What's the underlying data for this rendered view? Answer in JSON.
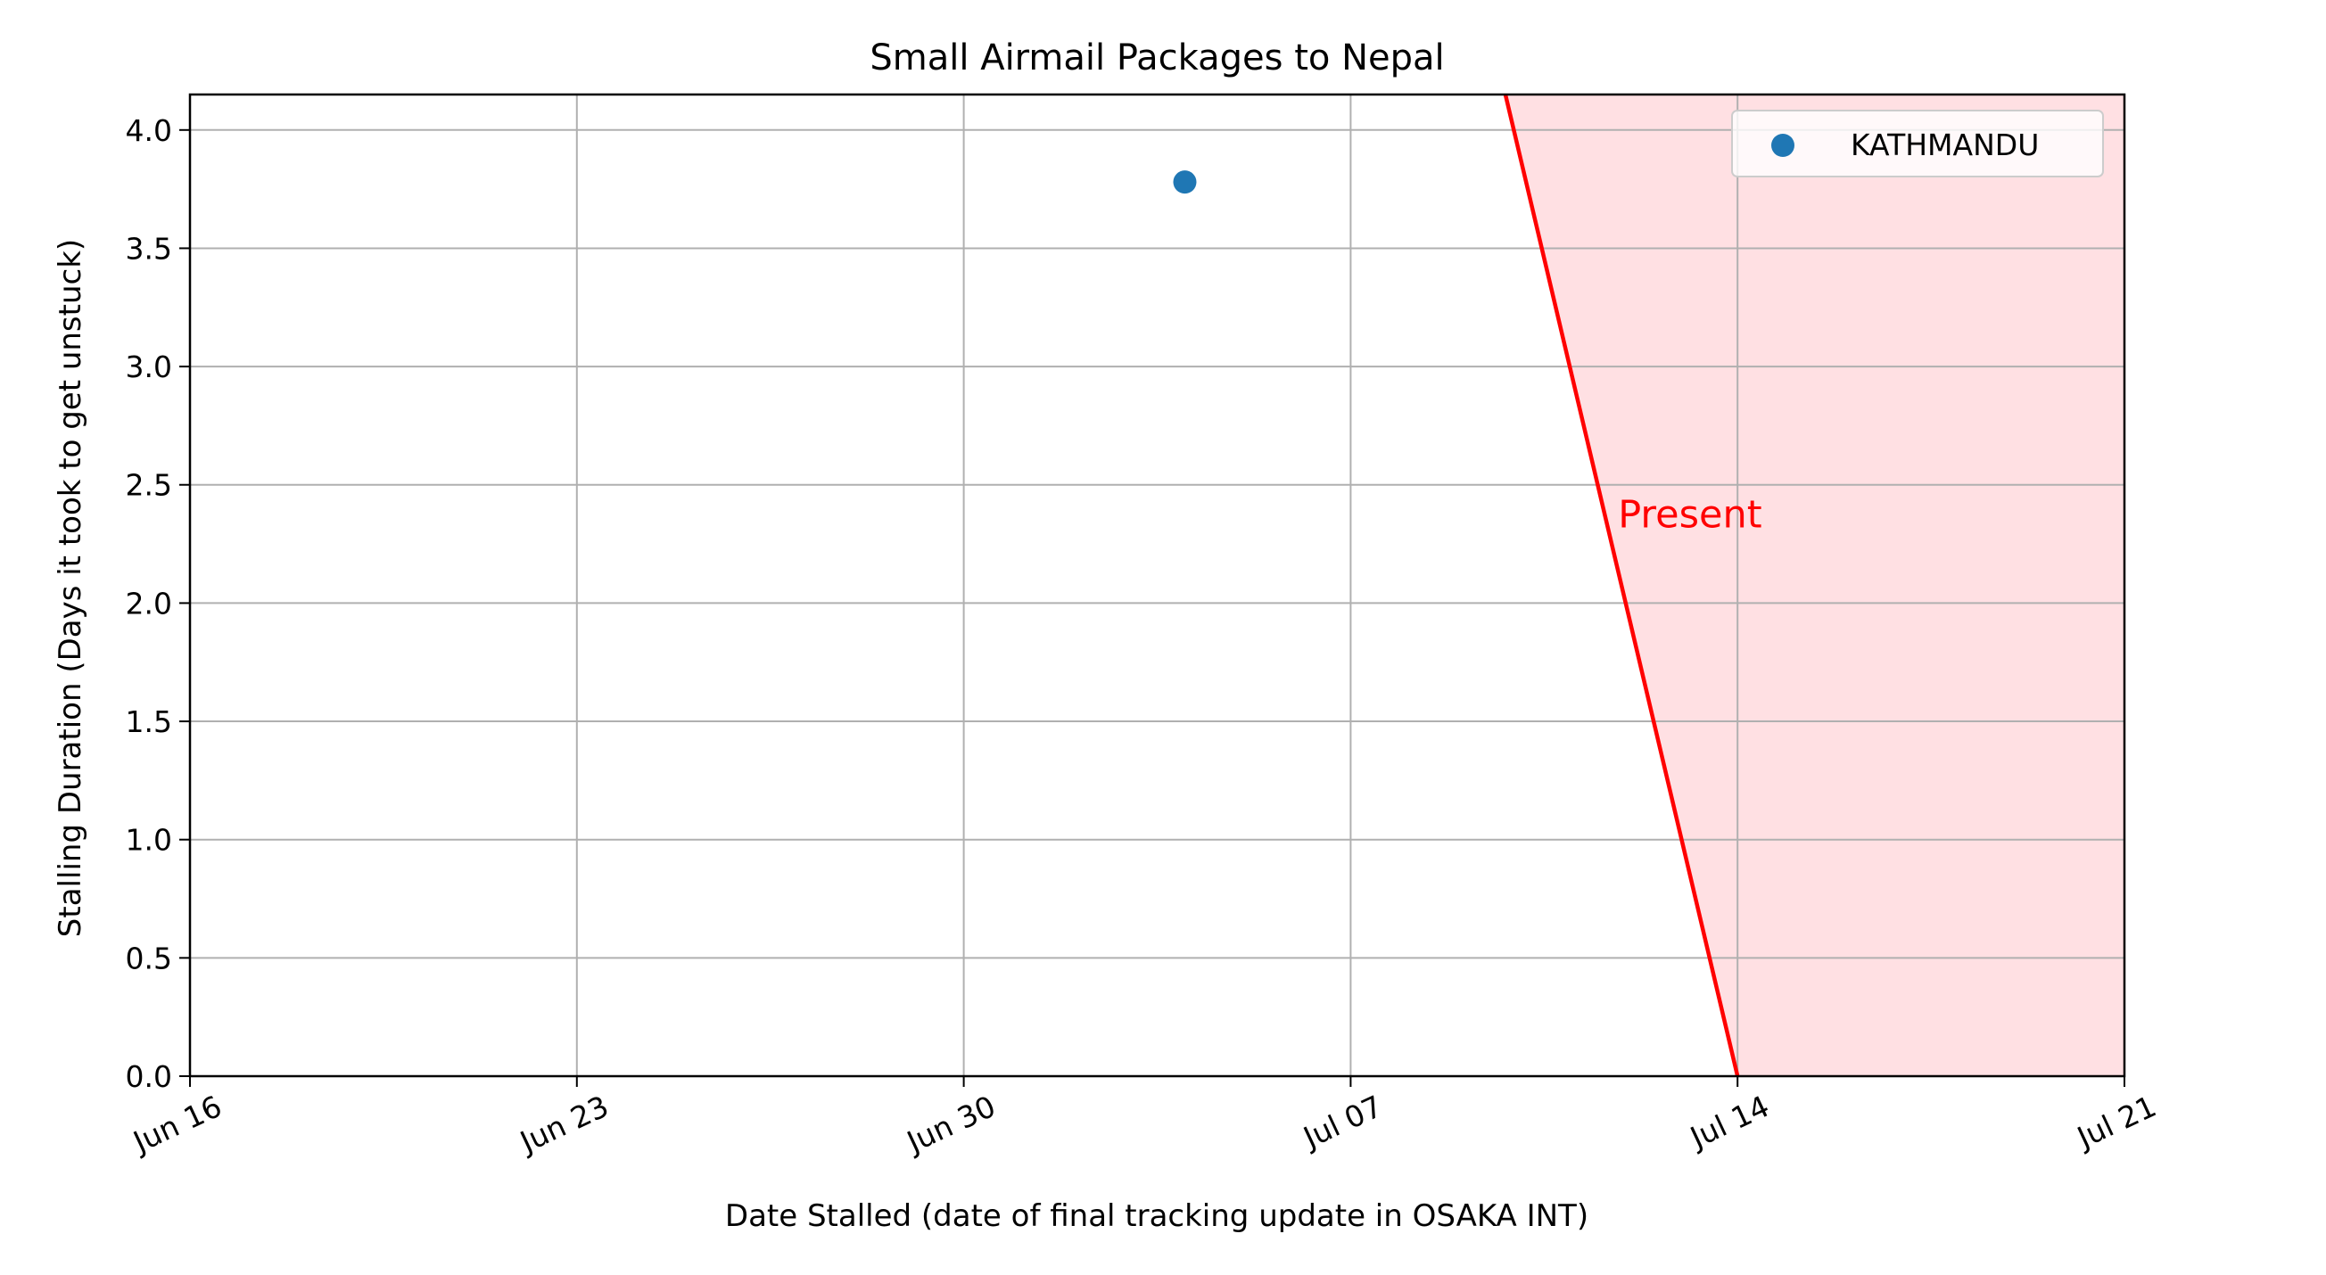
{
  "chart_data": {
    "type": "scatter",
    "title": "Small Airmail Packages to Nepal",
    "xlabel": "Date Stalled (date of final tracking update in OSAKA INT)",
    "ylabel": "Stalling Duration (Days it took to get unstuck)",
    "xlim": [
      "2024-06-16",
      "2024-07-21"
    ],
    "ylim": [
      0.0,
      4.15
    ],
    "grid": true,
    "x_ticks": [
      {
        "date": "2024-06-16",
        "label": "Jun 16"
      },
      {
        "date": "2024-06-23",
        "label": "Jun 23"
      },
      {
        "date": "2024-06-30",
        "label": "Jun 30"
      },
      {
        "date": "2024-07-07",
        "label": "Jul 07"
      },
      {
        "date": "2024-07-14",
        "label": "Jul 14"
      },
      {
        "date": "2024-07-21",
        "label": "Jul 21"
      }
    ],
    "y_ticks": [
      {
        "value": 0.0,
        "label": "0.0"
      },
      {
        "value": 0.5,
        "label": "0.5"
      },
      {
        "value": 1.0,
        "label": "1.0"
      },
      {
        "value": 1.5,
        "label": "1.5"
      },
      {
        "value": 2.0,
        "label": "2.0"
      },
      {
        "value": 2.5,
        "label": "2.5"
      },
      {
        "value": 3.0,
        "label": "3.0"
      },
      {
        "value": 3.5,
        "label": "3.5"
      },
      {
        "value": 4.0,
        "label": "4.0"
      }
    ],
    "series": [
      {
        "name": "KATHMANDU",
        "color": "#1f77b4",
        "points": [
          {
            "x": "2024-07-04",
            "y": 3.78
          }
        ]
      }
    ],
    "legend": {
      "placement": "upper-right",
      "entries": [
        "KATHMANDU"
      ]
    },
    "present_line": {
      "label": "Present",
      "color": "#ff0000",
      "points": [
        {
          "x": "2024-07-09.8",
          "y": 4.15
        },
        {
          "x": "2024-07-14",
          "y": 0.0
        }
      ],
      "label_anchor": {
        "x": "2024-07-12",
        "y": 2.35
      }
    },
    "shaded_region": {
      "color": "#ffe0e3",
      "from_line_to": "2024-07-21"
    }
  }
}
